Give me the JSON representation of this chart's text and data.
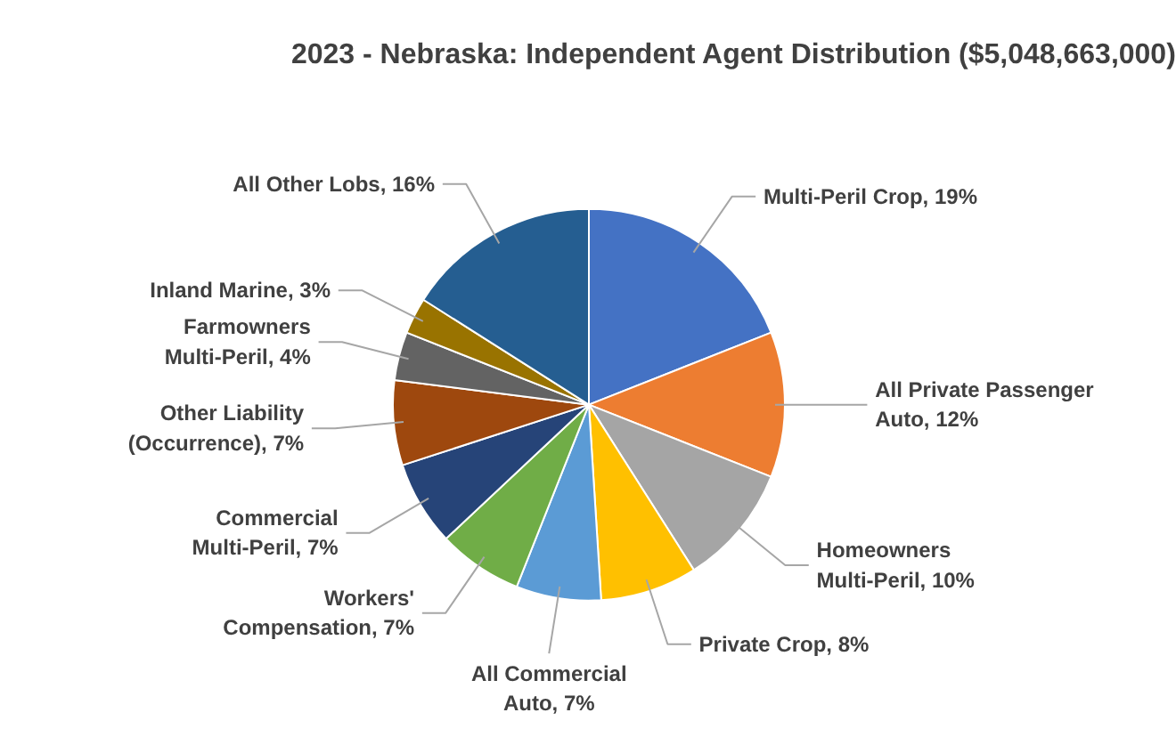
{
  "chart_data": {
    "type": "pie",
    "title": "2023 - Nebraska: Independent Agent Distribution ($5,048,663,000)",
    "categories": [
      "Multi-Peril Crop",
      "All Private Passenger Auto",
      "Homeowners Multi-Peril",
      "Private Crop",
      "All Commercial Auto",
      "Workers' Compensation",
      "Commercial Multi-Peril",
      "Other Liability (Occurrence)",
      "Farmowners Multi-Peril",
      "Inland Marine",
      "All Other Lobs"
    ],
    "values": [
      19,
      12,
      10,
      8,
      7,
      7,
      7,
      7,
      4,
      3,
      16
    ],
    "value_labels": [
      "19%",
      "12%",
      "10%",
      "8%",
      "7%",
      "7%",
      "7%",
      "7%",
      "4%",
      "3%",
      "16%"
    ],
    "colors": [
      "#4472c4",
      "#ed7d31",
      "#a5a5a5",
      "#ffc000",
      "#5b9bd5",
      "#70ad47",
      "#264478",
      "#9e480e",
      "#636363",
      "#997300",
      "#255e91"
    ],
    "legend": false
  }
}
